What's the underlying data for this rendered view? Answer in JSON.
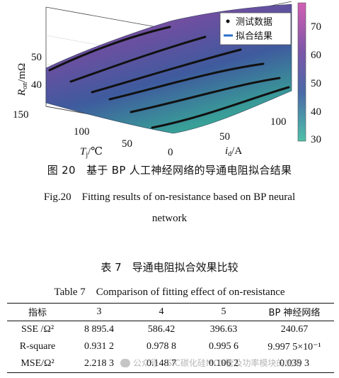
{
  "figure": {
    "z_axis_label": "R",
    "z_axis_sub": "on",
    "z_axis_unit": "/mΩ",
    "z_ticks": [
      "40",
      "50"
    ],
    "tj_ticks": [
      "150",
      "100",
      "50"
    ],
    "tj_label": "T",
    "tj_sub": "j",
    "tj_unit": "/℃",
    "id_ticks": [
      "0",
      "50",
      "100"
    ],
    "id_label": "i",
    "id_sub": "d",
    "id_unit": "/A",
    "colorbar_ticks": [
      "70",
      "60",
      "50",
      "40",
      "30"
    ],
    "legend": {
      "measured": "测试数据",
      "fitted": "拟合结果"
    },
    "colors": {
      "surface_low": "#3aa89a",
      "surface_mid": "#4a4f9e",
      "surface_high": "#b04fa0",
      "colorbar_top": "#d25fb4",
      "colorbar_bottom": "#4fc0a8",
      "data_lines": "#111111",
      "legend_line": "#2a6fc9"
    }
  },
  "captions": {
    "figure_cn": "图 20　基于 BP 人工神经网络的导通电阻拟合结果",
    "figure_en_line1": "Fig.20　Fitting results of on-resistance based on BP neural",
    "figure_en_line2": "network",
    "table_cn": "表 7　导通电阻拟合效果比较",
    "table_en": "Table 7　Comparison of fitting effect of on-resistance"
  },
  "table": {
    "headers": [
      "指标",
      "3",
      "4",
      "5",
      "BP 神经网络"
    ],
    "rows": [
      [
        "SSE /Ω²",
        "8 895.4",
        "586.42",
        "396.63",
        "240.67"
      ],
      [
        "R-square",
        "0.931 2",
        "0.978 8",
        "0.995 6",
        "9.997 5×10⁻¹"
      ],
      [
        "MSE/Ω²",
        "2.218 3",
        "0.148 7",
        "0.106 2",
        "0.039 3"
      ]
    ]
  },
  "watermark": "公众号 · SIC碳化硅MOS管及功率模块的应用"
}
